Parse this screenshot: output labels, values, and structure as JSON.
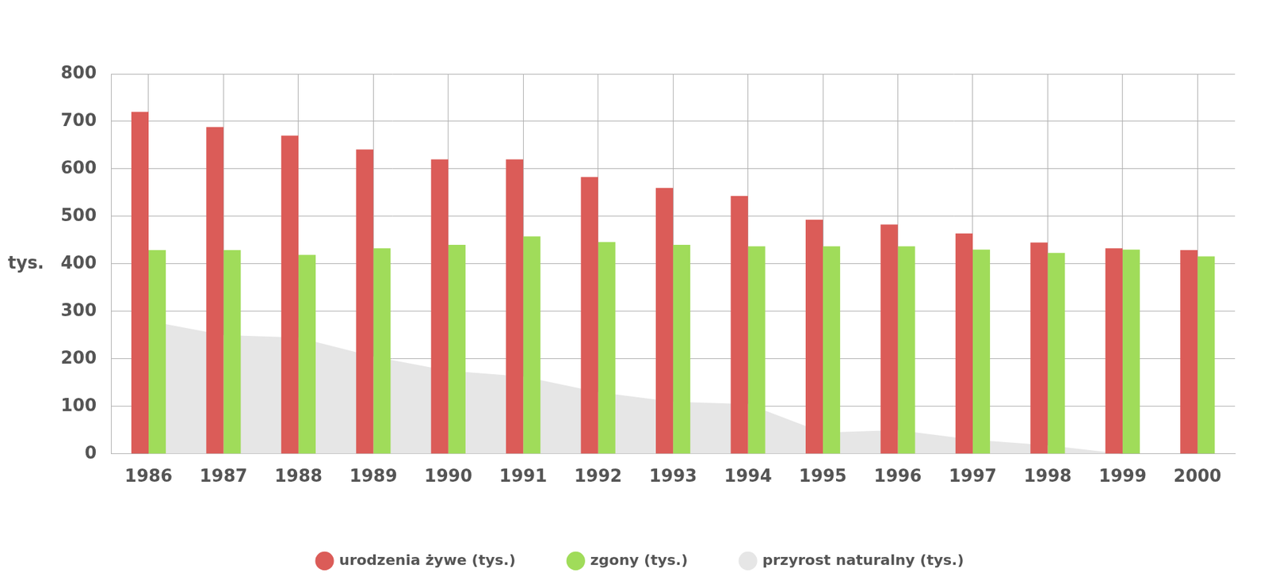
{
  "chart_data": {
    "type": "bar",
    "y_label": "tys.",
    "categories": [
      "1986",
      "1987",
      "1988",
      "1989",
      "1990",
      "1991",
      "1992",
      "1993",
      "1994",
      "1995",
      "1996",
      "1997",
      "1998",
      "1999",
      "2000"
    ],
    "series": [
      {
        "name": "przyrost naturalny (tys.)",
        "type": "area",
        "color": "#e6e6e6",
        "values": [
          280,
          250,
          245,
          205,
          175,
          163,
          130,
          110,
          105,
          45,
          50,
          30,
          18,
          0,
          0
        ]
      },
      {
        "name": "urodzenia żywe (tys.)",
        "type": "bar",
        "color": "#db5c58",
        "values": [
          720,
          688,
          670,
          641,
          620,
          620,
          583,
          560,
          543,
          493,
          483,
          464,
          445,
          433,
          429
        ]
      },
      {
        "name": "zgony (tys.)",
        "type": "bar",
        "color": "#a0dc5a",
        "values": [
          429,
          429,
          419,
          433,
          440,
          458,
          446,
          440,
          437,
          437,
          437,
          430,
          423,
          430,
          416
        ]
      }
    ],
    "ylim": [
      0,
      800
    ],
    "yticks": [
      0,
      100,
      200,
      300,
      400,
      500,
      600,
      700,
      800
    ],
    "grid": true,
    "legend": "bottom"
  }
}
